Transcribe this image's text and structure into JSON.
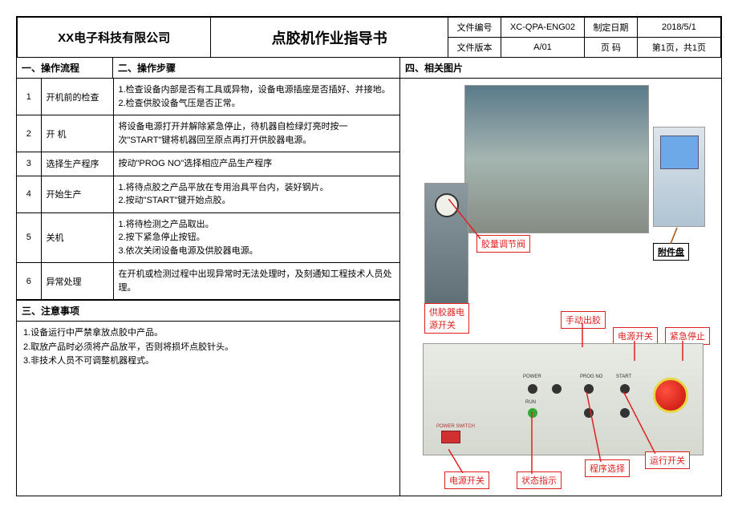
{
  "header": {
    "company": "XX电子科技有限公司",
    "title": "点胶机作业指导书",
    "doc_no_label": "文件编号",
    "doc_no": "XC-QPA-ENG02",
    "date_label": "制定日期",
    "date": "2018/5/1",
    "ver_label": "文件版本",
    "ver": "A/01",
    "page_label": "页  码",
    "page": "第1页，共1页"
  },
  "sections": {
    "s1": "一、操作流程",
    "s2": "二、操作步骤",
    "s3": "三、注意事项",
    "s4": "四、相关图片"
  },
  "steps": [
    {
      "n": "1",
      "name": "开机前的检查",
      "desc": "1.检查设备内部是否有工具或异物，设备电源插座是否插好、并接地。\n2.检查供胶设备气压是否正常。"
    },
    {
      "n": "2",
      "name": "开 机",
      "desc": "将设备电源打开并解除紧急停止，待机器自检绿灯亮时按一次\"START\"键将机器回至原点再打开供胶器电源。"
    },
    {
      "n": "3",
      "name": "选择生产程序",
      "desc": "按动\"PROG NO\"选择相应产品生产程序"
    },
    {
      "n": "4",
      "name": "开始生产",
      "desc": "1.将待点胶之产品平放在专用治具平台内，装好钢片。\n2.按动\"START\"键开始点胶。"
    },
    {
      "n": "5",
      "name": "关机",
      "desc": "1.将待检测之产品取出。\n2.按下紧急停止按钮。\n3.依次关闭设备电源及供胶器电源。"
    },
    {
      "n": "6",
      "name": "异常处理",
      "desc": "在开机或检测过程中出现异常时无法处理时，及刻通知工程技术人员处理。"
    }
  ],
  "notes": "1.设备运行中严禁拿放点胶中产品。\n2.取放产品时必须将产品放平，否则将损坏点胶针头。\n3.非技术人员不可调整机器程式。",
  "callouts": {
    "glue_valve": "胶量调节阀",
    "attachment": "附件盘",
    "psu_switch": "供胶器电\n源开关",
    "manual": "手动出胶",
    "power": "电源开关",
    "estop": "紧急停止",
    "power2": "电源开关",
    "status": "状态指示",
    "prog": "程序选择",
    "run": "运行开关"
  },
  "colors": {
    "callout_red": "#e02020",
    "estop_red": "#c01008",
    "photo_tint": "#6a8a8a"
  }
}
